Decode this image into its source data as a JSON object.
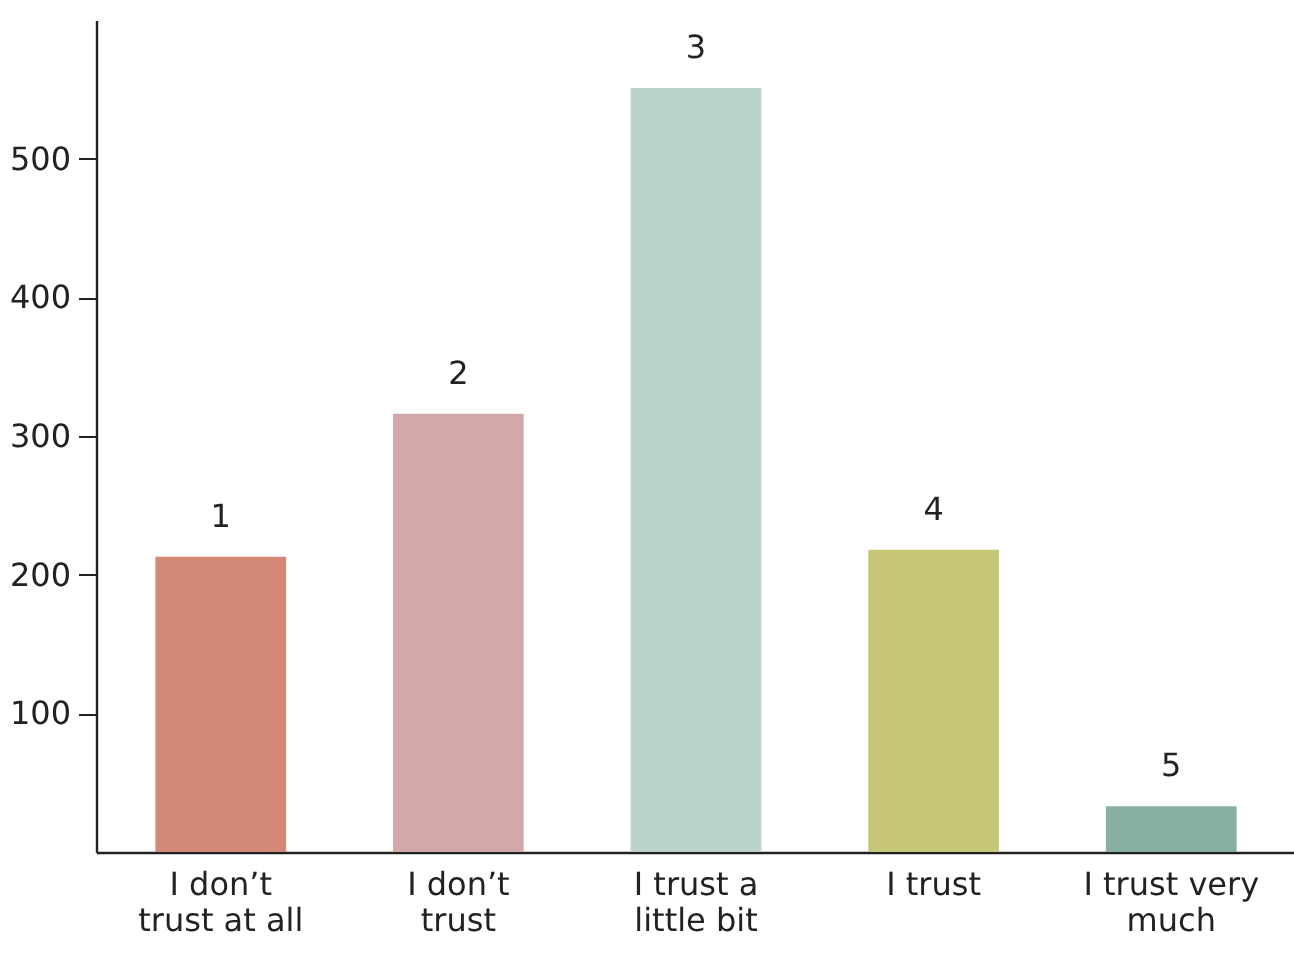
{
  "chart_data": {
    "type": "bar",
    "categories": [
      "I don’t trust at all",
      "I don’t trust",
      "I trust a little bit",
      "I trust",
      "I trust very much"
    ],
    "values": [
      213,
      316,
      551,
      218,
      33
    ],
    "colors": [
      "#d48878",
      "#d2a9a8",
      "#bcd3cb",
      "#c6c677",
      "#85b0a1"
    ],
    "ylim": [
      0,
      600
    ],
    "yticks": [
      100,
      200,
      300,
      400,
      500
    ],
    "grid": false,
    "annotations": [
      {
        "text": "1",
        "x": "I don’t trust at all",
        "y": 213
      },
      {
        "text": "2",
        "x": "I don’t trust",
        "y": 316
      },
      {
        "text": "3",
        "x": "I trust a little bit",
        "y": 551
      },
      {
        "text": "4",
        "x": "I trust",
        "y": 218
      },
      {
        "text": "5",
        "x": "I trust very much",
        "y": 33
      }
    ]
  }
}
